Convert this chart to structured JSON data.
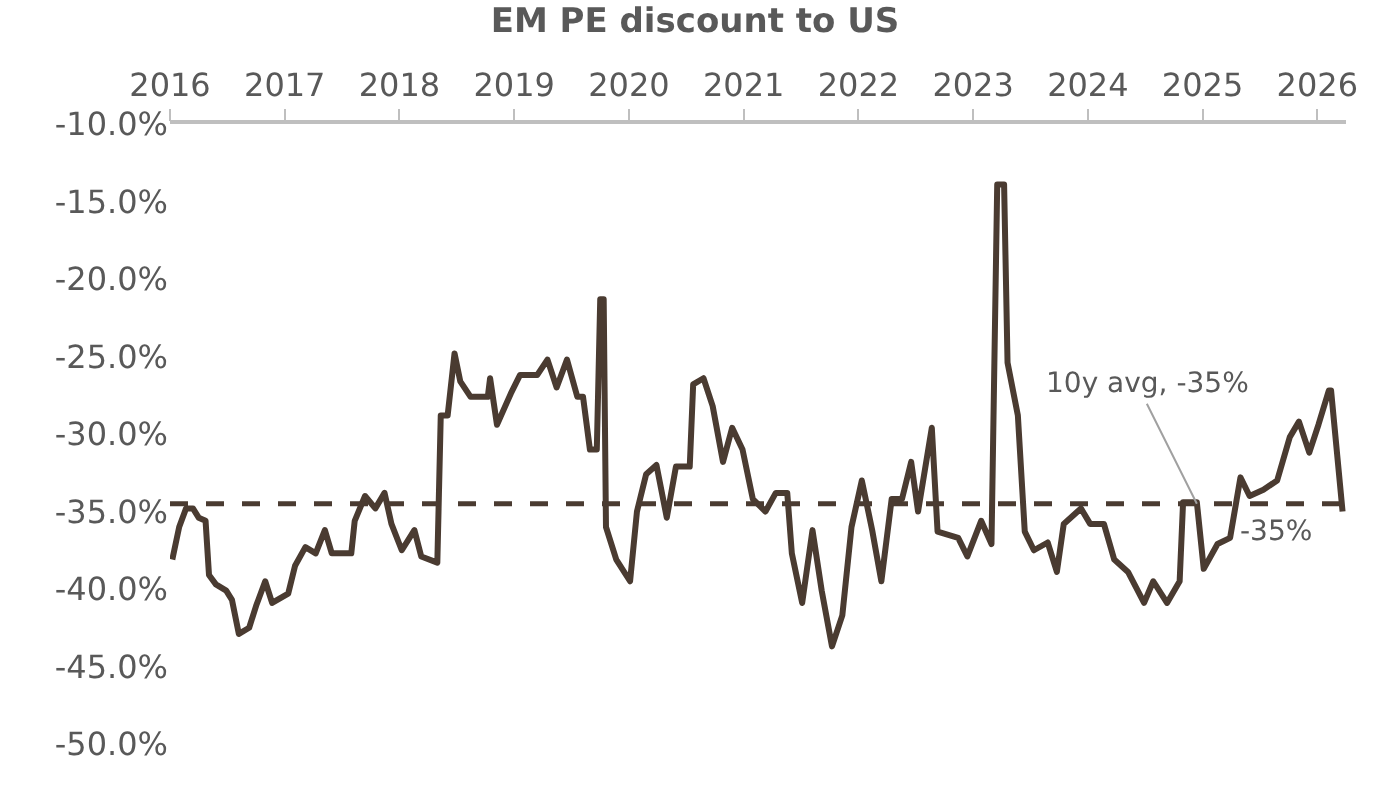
{
  "chart_data": {
    "type": "line",
    "title": "EM PE discount to US",
    "x": [
      2016.02,
      2016.08,
      2016.14,
      2016.2,
      2016.25,
      2016.31,
      2016.34,
      2016.4,
      2016.49,
      2016.54,
      2016.6,
      2016.69,
      2016.75,
      2016.83,
      2016.89,
      2017.03,
      2017.09,
      2017.18,
      2017.27,
      2017.35,
      2017.41,
      2017.58,
      2017.61,
      2017.7,
      2017.79,
      2017.87,
      2017.93,
      2018.02,
      2018.13,
      2018.19,
      2018.33,
      2018.36,
      2018.42,
      2018.48,
      2018.53,
      2018.62,
      2018.77,
      2018.79,
      2018.85,
      2018.97,
      2019.05,
      2019.2,
      2019.29,
      2019.37,
      2019.46,
      2019.55,
      2019.6,
      2019.66,
      2019.72,
      2019.75,
      2019.78,
      2019.8,
      2019.89,
      2020.01,
      2020.07,
      2020.15,
      2020.24,
      2020.33,
      2020.41,
      2020.53,
      2020.56,
      2020.65,
      2020.73,
      2020.82,
      2020.9,
      2020.99,
      2021.08,
      2021.19,
      2021.28,
      2021.38,
      2021.42,
      2021.51,
      2021.6,
      2021.68,
      2021.77,
      2021.86,
      2021.94,
      2022.03,
      2022.12,
      2022.2,
      2022.29,
      2022.38,
      2022.46,
      2022.52,
      2022.64,
      2022.69,
      2022.87,
      2022.95,
      2023.07,
      2023.16,
      2023.21,
      2023.27,
      2023.3,
      2023.39,
      2023.45,
      2023.53,
      2023.65,
      2023.73,
      2023.79,
      2023.94,
      2024.02,
      2024.14,
      2024.23,
      2024.35,
      2024.49,
      2024.57,
      2024.69,
      2024.8,
      2024.83,
      2024.95,
      2025.01,
      2025.13,
      2025.24,
      2025.33,
      2025.41,
      2025.53,
      2025.65,
      2025.76,
      2025.84,
      2025.93,
      2026.01,
      2026.1,
      2026.12,
      2026.22
    ],
    "series": [
      {
        "color": "#4a3b31",
        "values": [
          -38.1,
          -36.0,
          -34.8,
          -34.8,
          -35.4,
          -35.6,
          -39.1,
          -39.7,
          -40.1,
          -40.7,
          -42.9,
          -42.5,
          -41.1,
          -39.5,
          -40.9,
          -40.3,
          -38.5,
          -37.3,
          -37.7,
          -36.2,
          -37.7,
          -37.7,
          -35.6,
          -34.0,
          -34.8,
          -33.8,
          -35.8,
          -37.5,
          -36.2,
          -37.9,
          -38.3,
          -28.8,
          -28.8,
          -24.8,
          -26.6,
          -27.6,
          -27.6,
          -26.4,
          -29.4,
          -27.4,
          -26.2,
          -26.2,
          -25.2,
          -27.0,
          -25.2,
          -27.6,
          -27.6,
          -31.0,
          -31.0,
          -21.3,
          -21.3,
          -36.0,
          -38.1,
          -39.5,
          -35.0,
          -32.6,
          -32.0,
          -35.4,
          -32.1,
          -32.1,
          -26.8,
          -26.4,
          -28.2,
          -31.8,
          -29.6,
          -31.0,
          -34.2,
          -35.0,
          -33.8,
          -33.8,
          -37.7,
          -40.9,
          -36.2,
          -40.1,
          -43.7,
          -41.7,
          -36.0,
          -33.0,
          -36.2,
          -39.5,
          -34.2,
          -34.2,
          -31.8,
          -35.0,
          -29.6,
          -36.3,
          -36.7,
          -37.9,
          -35.6,
          -37.1,
          -13.9,
          -13.9,
          -25.4,
          -28.8,
          -36.3,
          -37.5,
          -37.0,
          -38.9,
          -35.8,
          -34.8,
          -35.8,
          -35.8,
          -38.1,
          -38.9,
          -40.9,
          -39.5,
          -40.9,
          -39.5,
          -34.4,
          -34.4,
          -38.7,
          -37.1,
          -36.7,
          -32.8,
          -34.0,
          -33.6,
          -33.0,
          -30.2,
          -29.2,
          -31.2,
          -29.4,
          -27.2,
          -27.2,
          -35.0
        ]
      }
    ],
    "xlim": [
      2016,
      2026.25
    ],
    "xticks": [
      2016,
      2017,
      2018,
      2019,
      2020,
      2021,
      2022,
      2023,
      2024,
      2025,
      2026
    ],
    "ylim": [
      -50,
      -10
    ],
    "yticks": [
      {
        "value": -10,
        "label": "-10.0%"
      },
      {
        "value": -15,
        "label": "-15.0%"
      },
      {
        "value": -20,
        "label": "-20.0%"
      },
      {
        "value": -25,
        "label": "-25.0%"
      },
      {
        "value": -30,
        "label": "-30.0%"
      },
      {
        "value": -35,
        "label": "-35.0%"
      },
      {
        "value": -40,
        "label": "-40.0%"
      },
      {
        "value": -45,
        "label": "-45.0%"
      },
      {
        "value": -50,
        "label": "-50.0%"
      }
    ],
    "ref_lines": [
      {
        "axis": "y",
        "value": -34.5,
        "label": "-35%",
        "color": "#4a3b31",
        "line_style": "dashed"
      }
    ],
    "annotations": [
      {
        "text": "10y avg, -35%",
        "x": 2024.95,
        "y": -34.5
      }
    ],
    "marker": "none",
    "line_style": "solid"
  }
}
